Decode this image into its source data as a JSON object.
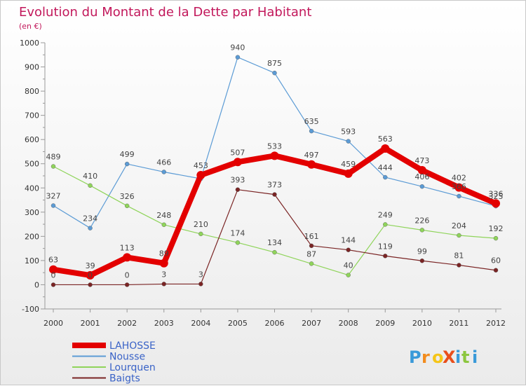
{
  "chart_data": {
    "type": "line",
    "title": "Evolution du Montant de la Dette par Habitant",
    "subtitle": "(en €)",
    "xlabel": "",
    "ylabel": "",
    "x": [
      "2000",
      "2001",
      "2002",
      "2003",
      "2004",
      "2005",
      "2006",
      "2007",
      "2008",
      "2009",
      "2010",
      "2011",
      "2012"
    ],
    "yticks": [
      "-100",
      "0",
      "100",
      "200",
      "300",
      "400",
      "500",
      "600",
      "700",
      "800",
      "900",
      "1000"
    ],
    "ylim": [
      -100,
      1000
    ],
    "grid": false,
    "legend_position": "bottom-left",
    "series": [
      {
        "name": "Nousse",
        "color": "#5b9bd5",
        "values": [
          327,
          234,
          499,
          466,
          438,
          940,
          875,
          635,
          593,
          444,
          406,
          366,
          325
        ]
      },
      {
        "name": "Lourquen",
        "color": "#8fd45a",
        "values": [
          489,
          410,
          326,
          248,
          210,
          174,
          134,
          87,
          40,
          249,
          226,
          204,
          192
        ]
      },
      {
        "name": "Baigts",
        "color": "#7a2424",
        "values": [
          0,
          0,
          0,
          3,
          3,
          393,
          373,
          161,
          144,
          119,
          99,
          81,
          60
        ]
      },
      {
        "name": "LAHOSSE",
        "color": "#e30000",
        "values": [
          63,
          39,
          113,
          89,
          453,
          507,
          533,
          497,
          459,
          563,
          473,
          402,
          336
        ]
      }
    ],
    "labels": {
      "Nousse": [
        "327",
        "234",
        "499",
        "466",
        "",
        "940",
        "875",
        "635",
        "593",
        "444",
        "406",
        "366",
        "325"
      ],
      "Lourquen": [
        "489",
        "410",
        "326",
        "248",
        "210",
        "174",
        "134",
        "87",
        "40",
        "249",
        "226",
        "204",
        "192"
      ],
      "Baigts": [
        "0",
        "0",
        "0",
        "3",
        "3",
        "393",
        "373",
        "161",
        "144",
        "119",
        "99",
        "81",
        "60"
      ],
      "LAHOSSE": [
        "63",
        "39",
        "113",
        "89",
        "453",
        "507",
        "533",
        "497",
        "459",
        "563",
        "473",
        "402",
        "336"
      ]
    }
  },
  "legend": [
    {
      "name": "LAHOSSE",
      "color": "#e30000"
    },
    {
      "name": "Nousse",
      "color": "#5b9bd5"
    },
    {
      "name": "Lourquen",
      "color": "#8fd45a"
    },
    {
      "name": "Baigts",
      "color": "#7a2424"
    }
  ],
  "logo": {
    "text": "ProXiti",
    "letters": [
      "P",
      "r",
      "o",
      "X",
      "i",
      "t",
      "i"
    ],
    "colors": [
      "#3a9ad9",
      "#f28c1e",
      "#f5c518",
      "#e94e1b",
      "#3a9ad9",
      "#8cc63f",
      "#3a9ad9"
    ]
  },
  "colors": {
    "title": "#c2185b",
    "axis": "#999999",
    "ticktext": "#333333",
    "label": "#444444"
  }
}
